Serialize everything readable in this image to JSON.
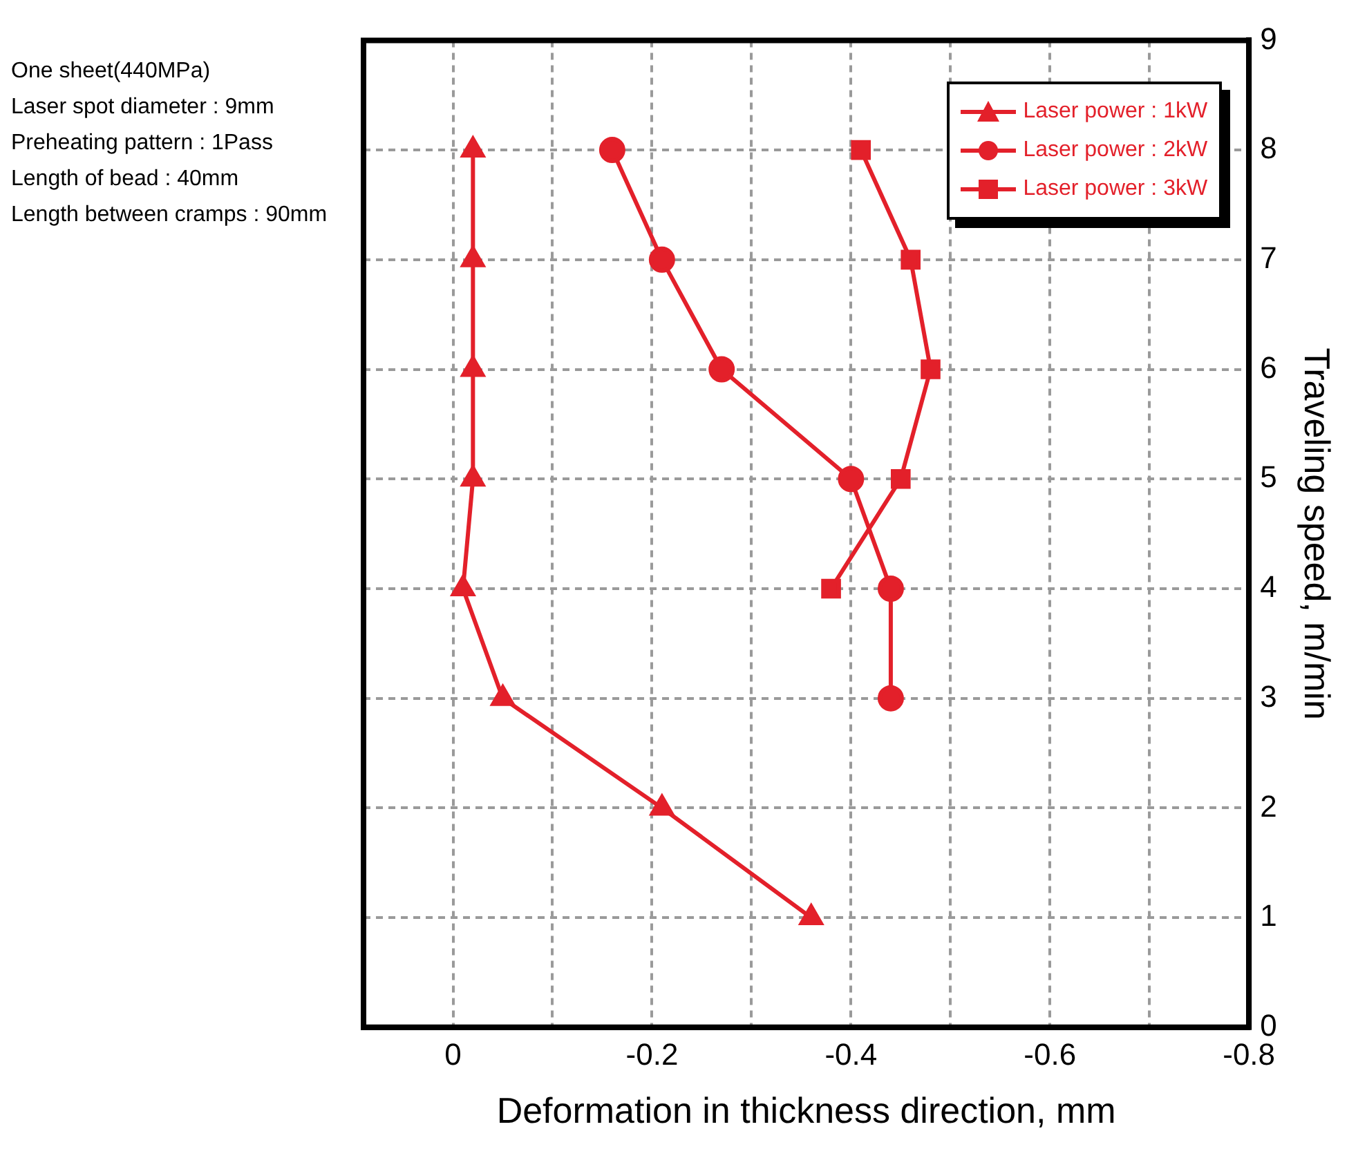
{
  "chart_data": {
    "type": "line",
    "xlabel": "Deformation in thickness direction, mm",
    "ylabel": "Traveling speed, m/min",
    "annotations": [
      "One sheet(440MPa)",
      "Laser spot diameter : 9mm",
      "Preheating pattern : 1Pass",
      "Length of bead : 40mm",
      "Length between cramps : 90mm"
    ],
    "series": [
      {
        "name": "Laser power : 1kW",
        "color": "#e3202a",
        "marker": "triangle",
        "x": [
          -0.36,
          -0.21,
          -0.05,
          -0.01,
          -0.02,
          -0.02,
          -0.02,
          -0.02
        ],
        "values": [
          1,
          2,
          3,
          4,
          5,
          6,
          7,
          8
        ]
      },
      {
        "name": "Laser power : 2kW",
        "color": "#e3202a",
        "marker": "circle",
        "x": [
          -0.44,
          -0.44,
          -0.4,
          -0.27,
          -0.21,
          -0.16
        ],
        "values": [
          3,
          4,
          5,
          6,
          7,
          8
        ]
      },
      {
        "name": "Laser power : 3kW",
        "color": "#e3202a",
        "marker": "square",
        "x": [
          -0.38,
          -0.45,
          -0.48,
          -0.46,
          -0.41
        ],
        "values": [
          4,
          5,
          6,
          7,
          8
        ]
      }
    ],
    "xlim": [
      0.09,
      -0.8
    ],
    "xticks": [
      {
        "value": 0,
        "label": "0"
      },
      {
        "value": -0.1,
        "label": null
      },
      {
        "value": -0.2,
        "label": "-0.2"
      },
      {
        "value": -0.3,
        "label": null
      },
      {
        "value": -0.4,
        "label": "-0.4"
      },
      {
        "value": -0.5,
        "label": null
      },
      {
        "value": -0.6,
        "label": "-0.6"
      },
      {
        "value": -0.7,
        "label": null
      },
      {
        "value": -0.8,
        "label": "-0.8"
      }
    ],
    "ylim": [
      0,
      9
    ],
    "yticks": [
      0,
      1,
      2,
      3,
      4,
      5,
      6,
      7,
      8,
      9
    ],
    "grid": true,
    "legend": "top right",
    "line_style": "solid"
  }
}
